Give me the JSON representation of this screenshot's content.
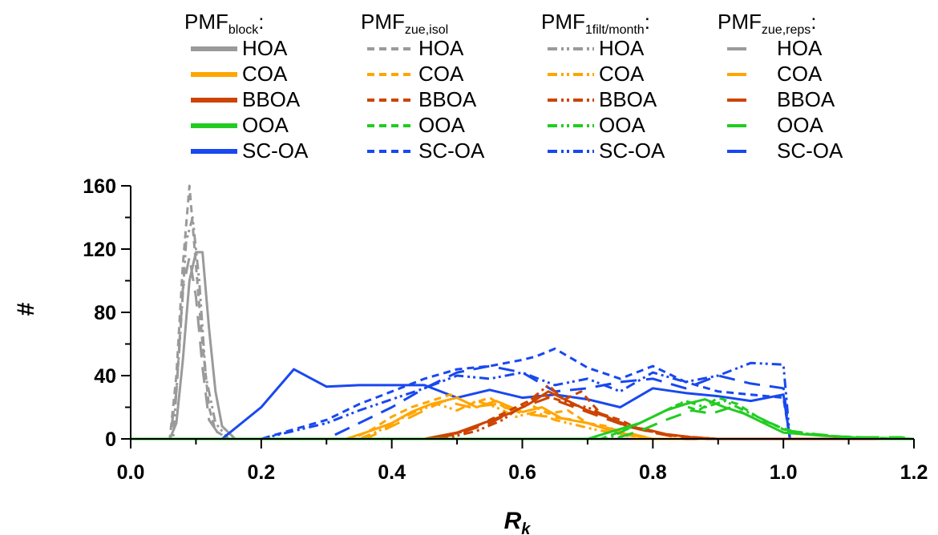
{
  "chart_data": {
    "type": "line",
    "xlabel": "R",
    "xlabel_sub": "k",
    "ylabel": "#",
    "xlim": [
      0.0,
      1.2
    ],
    "ylim": [
      0,
      160
    ],
    "x_ticks": [
      0.0,
      0.2,
      0.4,
      0.6,
      0.8,
      1.0,
      1.2
    ],
    "x_tick_labels": [
      "0.0",
      "0.2",
      "0.4",
      "0.6",
      "0.8",
      "1.0",
      "1.2"
    ],
    "y_ticks": [
      0,
      40,
      80,
      120,
      160
    ],
    "y_tick_labels": [
      "0",
      "40",
      "80",
      "120",
      "160"
    ],
    "grid": false,
    "legend_position": "top",
    "colors": {
      "HOA": "#9a9a9a",
      "COA": "#ffa500",
      "BBOA": "#cc4400",
      "OOA": "#22cc22",
      "SC-OA": "#1848f0"
    },
    "legend_groups": [
      {
        "prefix": "PMF",
        "subscript": "block",
        "suffix": ":",
        "style": "solid",
        "entries": [
          "HOA",
          "COA",
          "BBOA",
          "OOA",
          "SC-OA"
        ]
      },
      {
        "prefix": "PMF",
        "subscript": "zue,isol",
        "suffix": "",
        "style": "dash",
        "entries": [
          "HOA",
          "COA",
          "BBOA",
          "OOA",
          "SC-OA"
        ]
      },
      {
        "prefix": "PMF",
        "subscript": "1filt/month",
        "suffix": ":",
        "style": "dashdotdot",
        "entries": [
          "HOA",
          "COA",
          "BBOA",
          "OOA",
          "SC-OA"
        ]
      },
      {
        "prefix": "PMF",
        "subscript": "zue,reps",
        "suffix": ":",
        "style": "longdash",
        "entries": [
          "HOA",
          "COA",
          "BBOA",
          "OOA",
          "SC-OA"
        ]
      }
    ],
    "series": [
      {
        "group": "solid",
        "factor": "HOA",
        "x": [
          0,
          0.06,
          0.07,
          0.08,
          0.09,
          0.1,
          0.11,
          0.12,
          0.13,
          0.14,
          0.16,
          1.2
        ],
        "y": [
          0,
          0,
          10,
          50,
          100,
          118,
          118,
          70,
          30,
          8,
          0,
          0
        ]
      },
      {
        "group": "dash",
        "factor": "HOA",
        "x": [
          0,
          0.06,
          0.07,
          0.08,
          0.09,
          0.1,
          0.11,
          0.12,
          0.13,
          0.15,
          1.2
        ],
        "y": [
          0,
          0,
          40,
          110,
          160,
          110,
          60,
          20,
          5,
          0,
          0
        ]
      },
      {
        "group": "dashdotdot",
        "factor": "HOA",
        "x": [
          0,
          0.065,
          0.075,
          0.085,
          0.095,
          0.105,
          0.115,
          0.13,
          0.15,
          1.2
        ],
        "y": [
          0,
          0,
          60,
          125,
          140,
          100,
          40,
          10,
          0,
          0
        ]
      },
      {
        "group": "longdash",
        "factor": "HOA",
        "x": [
          0,
          0.06,
          0.07,
          0.08,
          0.09,
          0.1,
          0.11,
          0.12,
          0.14,
          1.2
        ],
        "y": [
          0,
          0,
          30,
          95,
          115,
          90,
          45,
          12,
          0,
          0
        ]
      },
      {
        "group": "solid",
        "factor": "SC-OA",
        "x": [
          0,
          0.14,
          0.2,
          0.25,
          0.3,
          0.35,
          0.4,
          0.45,
          0.5,
          0.55,
          0.6,
          0.65,
          0.7,
          0.75,
          0.8,
          0.85,
          0.9,
          0.95,
          1.0,
          1.01,
          1.2
        ],
        "y": [
          0,
          0,
          20,
          44,
          33,
          34,
          34,
          34,
          26,
          31,
          26,
          28,
          25,
          20,
          32,
          29,
          27,
          24,
          28,
          0,
          0
        ]
      },
      {
        "group": "dash",
        "factor": "SC-OA",
        "x": [
          0,
          0.2,
          0.25,
          0.3,
          0.35,
          0.4,
          0.45,
          0.5,
          0.55,
          0.6,
          0.62,
          0.65,
          0.7,
          0.75,
          0.8,
          0.85,
          0.9,
          0.95,
          1.0,
          1.01,
          1.2
        ],
        "y": [
          0,
          0,
          6,
          12,
          22,
          30,
          38,
          44,
          46,
          50,
          52,
          57,
          45,
          38,
          46,
          36,
          30,
          28,
          26,
          0,
          0
        ]
      },
      {
        "group": "dashdotdot",
        "factor": "SC-OA",
        "x": [
          0,
          0.2,
          0.25,
          0.3,
          0.35,
          0.4,
          0.45,
          0.5,
          0.55,
          0.6,
          0.65,
          0.7,
          0.75,
          0.8,
          0.85,
          0.9,
          0.95,
          1.0,
          1.01,
          1.2
        ],
        "y": [
          0,
          0,
          5,
          10,
          18,
          25,
          32,
          40,
          38,
          42,
          34,
          38,
          30,
          42,
          36,
          40,
          48,
          47,
          0,
          0
        ]
      },
      {
        "group": "longdash",
        "factor": "SC-OA",
        "x": [
          0,
          0.3,
          0.35,
          0.4,
          0.45,
          0.5,
          0.55,
          0.6,
          0.65,
          0.7,
          0.75,
          0.8,
          0.85,
          0.9,
          0.95,
          1.0,
          1.01,
          1.2
        ],
        "y": [
          0,
          0,
          10,
          20,
          32,
          42,
          46,
          42,
          30,
          32,
          36,
          38,
          32,
          40,
          35,
          32,
          0,
          0
        ]
      },
      {
        "group": "solid",
        "factor": "COA",
        "x": [
          0,
          0.33,
          0.36,
          0.4,
          0.43,
          0.46,
          0.5,
          0.53,
          0.56,
          0.6,
          0.63,
          0.66,
          0.7,
          0.73,
          0.76,
          0.8,
          1.2
        ],
        "y": [
          0,
          0,
          4,
          10,
          17,
          22,
          26,
          20,
          24,
          17,
          20,
          13,
          10,
          6,
          3,
          0,
          0
        ]
      },
      {
        "group": "dash",
        "factor": "COA",
        "x": [
          0,
          0.34,
          0.37,
          0.4,
          0.43,
          0.46,
          0.49,
          0.52,
          0.55,
          0.58,
          0.61,
          0.64,
          0.67,
          0.7,
          0.73,
          0.77,
          1.2
        ],
        "y": [
          0,
          0,
          6,
          14,
          20,
          24,
          28,
          22,
          26,
          18,
          22,
          16,
          18,
          10,
          8,
          0,
          0
        ]
      },
      {
        "group": "dashdotdot",
        "factor": "COA",
        "x": [
          0,
          0.35,
          0.38,
          0.41,
          0.44,
          0.47,
          0.5,
          0.53,
          0.56,
          0.59,
          0.62,
          0.65,
          0.68,
          0.71,
          0.75,
          0.8,
          1.2
        ],
        "y": [
          0,
          0,
          5,
          12,
          18,
          22,
          18,
          24,
          20,
          14,
          17,
          12,
          9,
          6,
          3,
          0,
          0
        ]
      },
      {
        "group": "longdash",
        "factor": "COA",
        "x": [
          0,
          0.36,
          0.4,
          0.44,
          0.48,
          0.52,
          0.56,
          0.6,
          0.64,
          0.68,
          0.72,
          0.76,
          0.8,
          1.2
        ],
        "y": [
          0,
          0,
          8,
          16,
          24,
          20,
          22,
          16,
          14,
          12,
          8,
          4,
          0,
          0
        ]
      },
      {
        "group": "solid",
        "factor": "BBOA",
        "x": [
          0,
          0.45,
          0.5,
          0.54,
          0.58,
          0.61,
          0.64,
          0.67,
          0.7,
          0.73,
          0.76,
          0.79,
          0.82,
          0.86,
          0.9,
          1.2
        ],
        "y": [
          0,
          0,
          4,
          10,
          16,
          22,
          30,
          24,
          18,
          14,
          8,
          6,
          3,
          1,
          0,
          0
        ]
      },
      {
        "group": "dash",
        "factor": "BBOA",
        "x": [
          0,
          0.47,
          0.52,
          0.56,
          0.6,
          0.63,
          0.66,
          0.69,
          0.72,
          0.75,
          0.78,
          0.82,
          0.88,
          1.2
        ],
        "y": [
          0,
          0,
          6,
          14,
          22,
          28,
          24,
          30,
          16,
          12,
          6,
          3,
          0,
          0
        ]
      },
      {
        "group": "dashdotdot",
        "factor": "BBOA",
        "x": [
          0,
          0.48,
          0.53,
          0.57,
          0.61,
          0.64,
          0.67,
          0.7,
          0.74,
          0.78,
          0.83,
          0.9,
          1.2
        ],
        "y": [
          0,
          0,
          5,
          12,
          24,
          34,
          22,
          20,
          12,
          6,
          2,
          0,
          0
        ]
      },
      {
        "group": "longdash",
        "factor": "BBOA",
        "x": [
          0,
          0.46,
          0.5,
          0.55,
          0.6,
          0.64,
          0.68,
          0.72,
          0.76,
          0.8,
          0.85,
          1.2
        ],
        "y": [
          0,
          0,
          3,
          10,
          20,
          26,
          20,
          14,
          8,
          4,
          0,
          0
        ]
      },
      {
        "group": "solid",
        "factor": "OOA",
        "x": [
          0,
          0.7,
          0.74,
          0.78,
          0.82,
          0.85,
          0.88,
          0.91,
          0.94,
          0.97,
          1.0,
          1.03,
          1.06,
          1.1,
          1.15,
          1.2
        ],
        "y": [
          0,
          0,
          5,
          10,
          18,
          22,
          25,
          20,
          16,
          10,
          4,
          3,
          2,
          1,
          0,
          0
        ]
      },
      {
        "group": "dash",
        "factor": "OOA",
        "x": [
          0,
          0.72,
          0.76,
          0.8,
          0.84,
          0.87,
          0.9,
          0.93,
          0.96,
          0.99,
          1.02,
          1.06,
          1.12,
          1.2
        ],
        "y": [
          0,
          0,
          6,
          14,
          22,
          18,
          26,
          22,
          14,
          8,
          4,
          2,
          1,
          0
        ]
      },
      {
        "group": "dashdotdot",
        "factor": "OOA",
        "x": [
          0,
          0.73,
          0.77,
          0.81,
          0.85,
          0.88,
          0.91,
          0.94,
          0.97,
          1.0,
          1.04,
          1.1,
          1.2
        ],
        "y": [
          0,
          0,
          8,
          16,
          24,
          20,
          24,
          18,
          12,
          6,
          3,
          1,
          0
        ]
      },
      {
        "group": "longdash",
        "factor": "OOA",
        "x": [
          0,
          0.74,
          0.78,
          0.82,
          0.86,
          0.89,
          0.92,
          0.95,
          0.98,
          1.01,
          1.05,
          1.1,
          1.18,
          1.2
        ],
        "y": [
          0,
          0,
          5,
          12,
          18,
          16,
          20,
          14,
          10,
          5,
          3,
          1,
          1,
          0
        ]
      }
    ]
  }
}
